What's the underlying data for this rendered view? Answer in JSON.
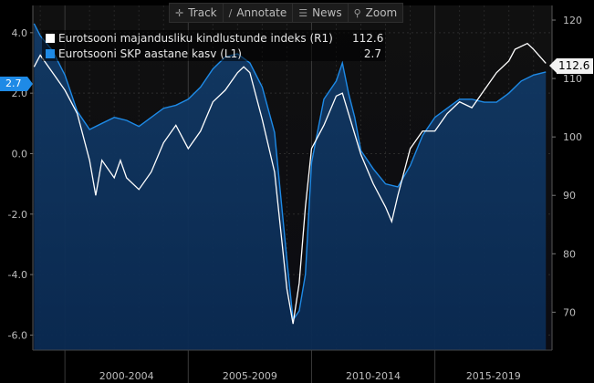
{
  "toolbar": {
    "buttons": [
      {
        "label": "Track",
        "icon": "crosshair-icon",
        "glyph": "✛"
      },
      {
        "label": "Annotate",
        "icon": "pen-icon",
        "glyph": "∕"
      },
      {
        "label": "News",
        "icon": "news-icon",
        "glyph": "☰"
      },
      {
        "label": "Zoom",
        "icon": "magnifier-icon",
        "glyph": "⚲"
      }
    ]
  },
  "legend": {
    "items": [
      {
        "name": "Eurotsooni majandusliku kindlustunde indeks  (R1)",
        "value": "112.6",
        "color": "#ffffff"
      },
      {
        "name": "Eurotsooni SKP aastane kasv  (L1)",
        "value": "2.7",
        "color": "#1e8ae6"
      }
    ]
  },
  "tags": {
    "right_value": "112.6",
    "left_value": "2.7"
  },
  "chart_data": {
    "type": "line",
    "x_range": [
      1998.7,
      2019.75
    ],
    "x_period_labels": [
      "2000-2004",
      "2005-2009",
      "2010-2014",
      "2015-2019"
    ],
    "x_period_bounds": [
      [
        2000,
        2005
      ],
      [
        2005,
        2010
      ],
      [
        2010,
        2015
      ],
      [
        2015,
        2020
      ]
    ],
    "left_axis": {
      "range": [
        -6.5,
        4.9
      ],
      "ticks": [
        4.0,
        2.0,
        0.0,
        -2.0,
        -4.0,
        -6.0
      ],
      "tick_labels": [
        "4.0",
        "2.0",
        "0.0",
        "-2.0",
        "-4.0",
        "-6.0"
      ]
    },
    "right_axis": {
      "range": [
        63.5,
        122.5
      ],
      "ticks": [
        120,
        110,
        100,
        90,
        80,
        70
      ],
      "tick_labels": [
        "120",
        "110",
        "100",
        "90",
        "80",
        "70"
      ]
    },
    "grid": true,
    "series": [
      {
        "name": "Eurotsooni SKP aastane kasv",
        "axis": "left",
        "color": "#1e8ae6",
        "area": true,
        "points": [
          [
            1998.75,
            4.3
          ],
          [
            1999.0,
            3.9
          ],
          [
            1999.5,
            3.4
          ],
          [
            2000.0,
            2.6
          ],
          [
            2000.5,
            1.4
          ],
          [
            2001.0,
            0.8
          ],
          [
            2001.5,
            1.0
          ],
          [
            2002.0,
            1.2
          ],
          [
            2002.5,
            1.1
          ],
          [
            2003.0,
            0.9
          ],
          [
            2003.5,
            1.2
          ],
          [
            2004.0,
            1.5
          ],
          [
            2004.5,
            1.6
          ],
          [
            2005.0,
            1.8
          ],
          [
            2005.5,
            2.2
          ],
          [
            2006.0,
            2.8
          ],
          [
            2006.5,
            3.2
          ],
          [
            2007.0,
            3.3
          ],
          [
            2007.5,
            3.0
          ],
          [
            2008.0,
            2.2
          ],
          [
            2008.5,
            0.7
          ],
          [
            2009.0,
            -3.5
          ],
          [
            2009.25,
            -5.5
          ],
          [
            2009.5,
            -5.2
          ],
          [
            2009.75,
            -4.0
          ],
          [
            2010.0,
            -0.3
          ],
          [
            2010.5,
            1.8
          ],
          [
            2011.0,
            2.4
          ],
          [
            2011.25,
            3.0
          ],
          [
            2011.5,
            2.0
          ],
          [
            2011.75,
            1.2
          ],
          [
            2012.0,
            0.1
          ],
          [
            2012.5,
            -0.5
          ],
          [
            2013.0,
            -1.0
          ],
          [
            2013.5,
            -1.1
          ],
          [
            2014.0,
            -0.4
          ],
          [
            2014.5,
            0.6
          ],
          [
            2015.0,
            1.2
          ],
          [
            2015.5,
            1.5
          ],
          [
            2016.0,
            1.8
          ],
          [
            2016.5,
            1.8
          ],
          [
            2017.0,
            1.7
          ],
          [
            2017.5,
            1.7
          ],
          [
            2018.0,
            2.0
          ],
          [
            2018.5,
            2.4
          ],
          [
            2019.0,
            2.6
          ],
          [
            2019.5,
            2.7
          ]
        ]
      },
      {
        "name": "Eurotsooni majandusliku kindlustunde indeks",
        "axis": "right",
        "color": "#ffffff",
        "area": false,
        "points": [
          [
            1998.75,
            112
          ],
          [
            1999.0,
            114
          ],
          [
            1999.5,
            111
          ],
          [
            2000.0,
            108
          ],
          [
            2000.5,
            104
          ],
          [
            2001.0,
            96
          ],
          [
            2001.25,
            90
          ],
          [
            2001.5,
            96
          ],
          [
            2002.0,
            93
          ],
          [
            2002.25,
            96
          ],
          [
            2002.5,
            93
          ],
          [
            2003.0,
            91
          ],
          [
            2003.5,
            94
          ],
          [
            2004.0,
            99
          ],
          [
            2004.5,
            102
          ],
          [
            2005.0,
            98
          ],
          [
            2005.5,
            101
          ],
          [
            2006.0,
            106
          ],
          [
            2006.5,
            108
          ],
          [
            2007.0,
            111
          ],
          [
            2007.25,
            112
          ],
          [
            2007.5,
            111
          ],
          [
            2008.0,
            103
          ],
          [
            2008.5,
            94
          ],
          [
            2009.0,
            74
          ],
          [
            2009.25,
            68
          ],
          [
            2009.5,
            75
          ],
          [
            2009.75,
            88
          ],
          [
            2010.0,
            98
          ],
          [
            2010.5,
            102
          ],
          [
            2011.0,
            107
          ],
          [
            2011.25,
            107.5
          ],
          [
            2011.5,
            104
          ],
          [
            2012.0,
            97
          ],
          [
            2012.5,
            92
          ],
          [
            2013.0,
            88
          ],
          [
            2013.25,
            85.5
          ],
          [
            2013.5,
            90
          ],
          [
            2014.0,
            98
          ],
          [
            2014.5,
            101
          ],
          [
            2015.0,
            101
          ],
          [
            2015.5,
            104
          ],
          [
            2016.0,
            106
          ],
          [
            2016.5,
            105
          ],
          [
            2017.0,
            108
          ],
          [
            2017.5,
            111
          ],
          [
            2018.0,
            113
          ],
          [
            2018.25,
            115
          ],
          [
            2018.75,
            116
          ],
          [
            2019.0,
            115
          ],
          [
            2019.5,
            112.6
          ]
        ]
      }
    ]
  }
}
